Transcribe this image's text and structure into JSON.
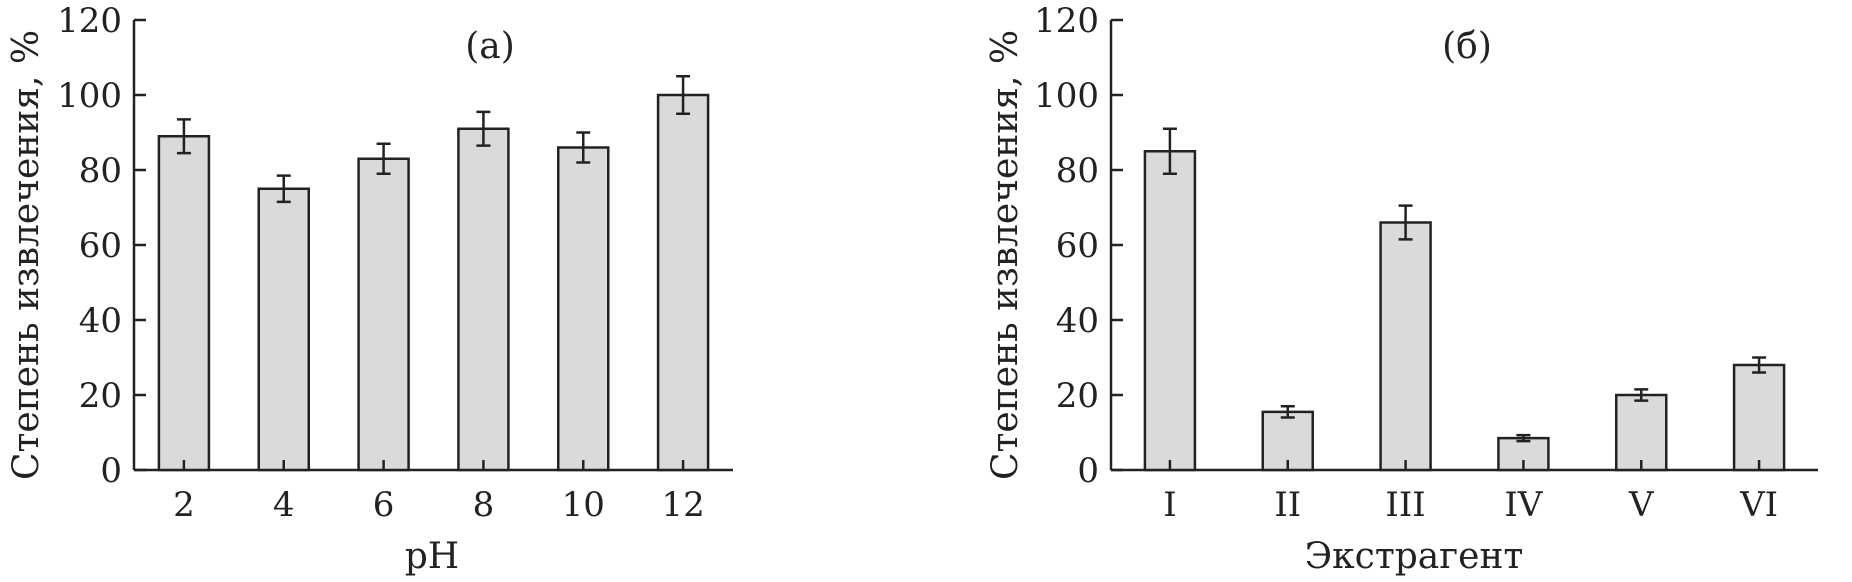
{
  "chart_data": [
    {
      "type": "bar",
      "panel_label": "(a)",
      "xlabel": "pH",
      "ylabel": "Степень извлечения, %",
      "categories": [
        "2",
        "4",
        "6",
        "8",
        "10",
        "12"
      ],
      "values": [
        89,
        75,
        83,
        91,
        86,
        100
      ],
      "errors": [
        4.5,
        3.5,
        4,
        4.5,
        4,
        5
      ],
      "ylim": [
        0,
        120
      ],
      "yticks": [
        "0",
        "20",
        "40",
        "60",
        "80",
        "100",
        "120"
      ],
      "grid": false,
      "bar_color": "#d9dadc"
    },
    {
      "type": "bar",
      "panel_label": "(б)",
      "xlabel": "Экстрагент",
      "ylabel": "Степень извлечения, %",
      "categories": [
        "I",
        "II",
        "III",
        "IV",
        "V",
        "VI"
      ],
      "values": [
        85,
        15.5,
        66,
        8.5,
        20,
        28
      ],
      "errors": [
        6,
        1.5,
        4.5,
        0.8,
        1.5,
        2
      ],
      "ylim": [
        0,
        120
      ],
      "yticks": [
        "0",
        "20",
        "40",
        "60",
        "80",
        "100",
        "120"
      ],
      "grid": false,
      "bar_color": "#d9dadc"
    }
  ]
}
